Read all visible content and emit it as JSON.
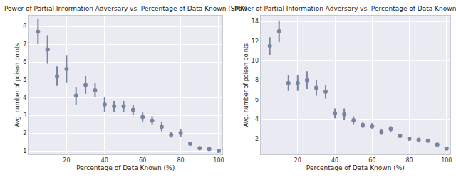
{
  "chart_data": [
    {
      "type": "scatter",
      "title": "Power of Partial Information Adversary vs. Percentage of Data Known (SMK)",
      "x_label": "Percentage of Data Known (%)",
      "y_label": "Avg. number of poison points",
      "x": [
        5,
        10,
        15,
        20,
        25,
        30,
        35,
        40,
        45,
        50,
        55,
        60,
        65,
        70,
        75,
        80,
        85,
        90,
        95,
        100
      ],
      "values": [
        7.7,
        6.7,
        5.2,
        5.6,
        4.1,
        4.7,
        4.4,
        3.6,
        3.5,
        3.5,
        3.3,
        2.9,
        2.7,
        2.35,
        1.9,
        2.0,
        1.4,
        1.15,
        1.1,
        1.0
      ],
      "error": [
        0.7,
        0.8,
        0.55,
        0.75,
        0.5,
        0.5,
        0.4,
        0.4,
        0.3,
        0.3,
        0.3,
        0.3,
        0.25,
        0.25,
        0.15,
        0.2,
        0.1,
        0.1,
        0.1,
        0.0
      ],
      "color": "#7785a0",
      "marker": "circle",
      "xlim": [
        0,
        102
      ],
      "ylim": [
        0.8,
        8.6
      ],
      "xticks": [
        20,
        40,
        60,
        80,
        100
      ],
      "yticks": [
        1,
        2,
        3,
        4,
        5,
        6,
        7,
        8
      ],
      "grid": true
    },
    {
      "type": "scatter",
      "title": "Power of Partial Information Adversary vs. Percentage of Data Known (TOX)",
      "x_label": "Percentage of Data Known (%)",
      "y_label": "Avg. number of poison points",
      "x": [
        5,
        10,
        15,
        20,
        25,
        30,
        35,
        40,
        45,
        50,
        55,
        60,
        65,
        70,
        75,
        80,
        85,
        90,
        95,
        100
      ],
      "values": [
        11.5,
        13.0,
        7.7,
        7.7,
        8.0,
        7.2,
        6.8,
        4.6,
        4.5,
        3.9,
        3.4,
        3.3,
        2.7,
        3.0,
        2.3,
        2.0,
        1.9,
        1.8,
        1.4,
        1.0
      ],
      "error": [
        0.9,
        1.1,
        0.8,
        0.8,
        0.9,
        0.8,
        0.7,
        0.5,
        0.6,
        0.4,
        0.3,
        0.3,
        0.3,
        0.3,
        0.2,
        0.15,
        0.15,
        0.1,
        0.1,
        0.0
      ],
      "color": "#7785a0",
      "marker": "circle",
      "xlim": [
        0,
        102
      ],
      "ylim": [
        0.4,
        14.6
      ],
      "xticks": [
        20,
        40,
        60,
        80,
        100
      ],
      "yticks": [
        2,
        4,
        6,
        8,
        10,
        12,
        14
      ],
      "grid": true
    }
  ]
}
